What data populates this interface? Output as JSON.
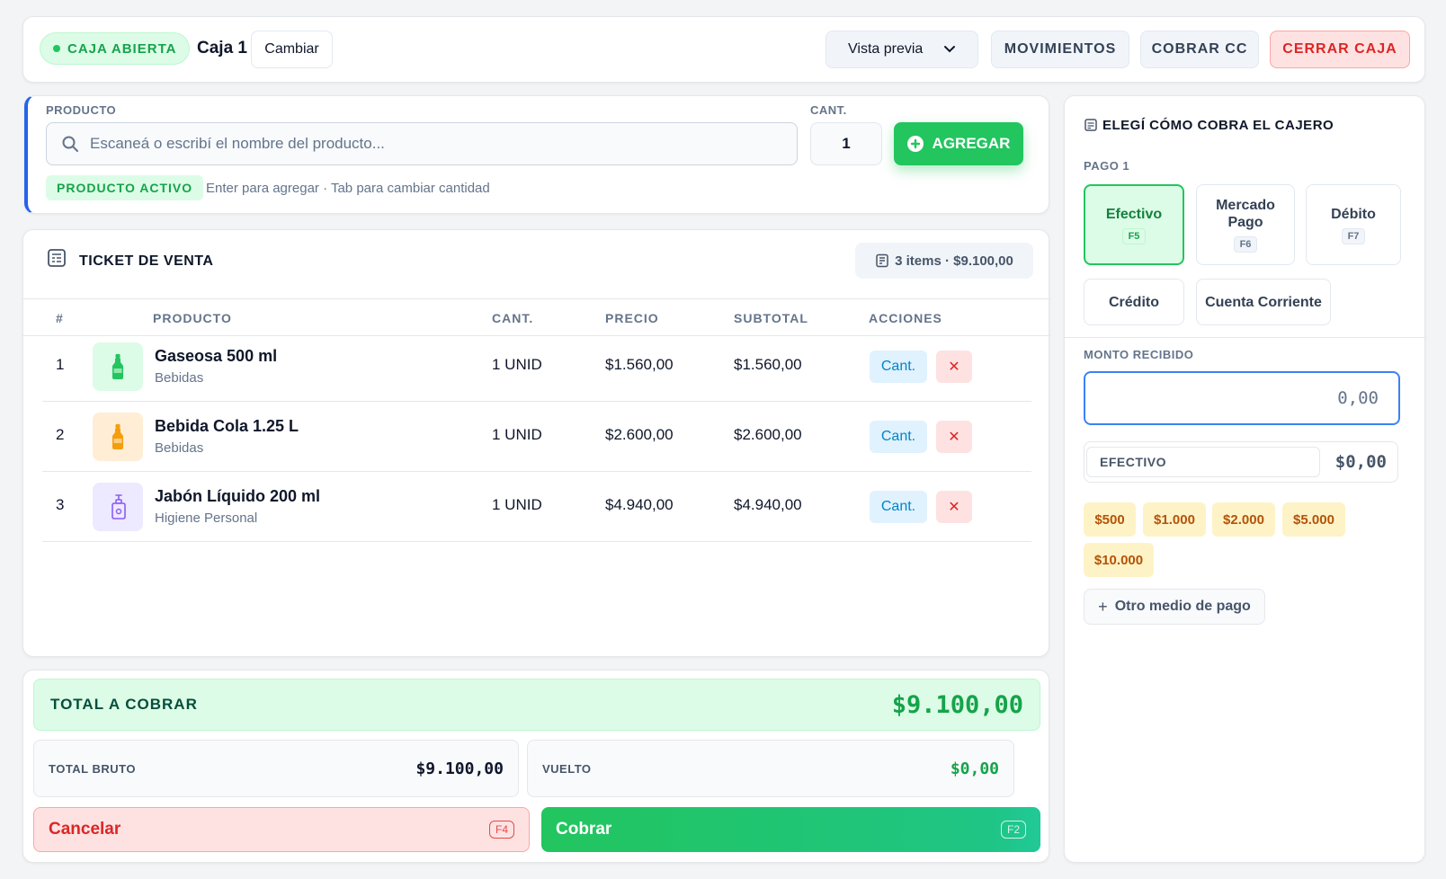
{
  "topbar": {
    "status": "CAJA ABIERTA",
    "register": "Caja 1",
    "change": "Cambiar",
    "preview": "Vista previa",
    "movements": "MOVIMIENTOS",
    "collect_cc": "COBRAR CC",
    "close_register": "CERRAR CAJA"
  },
  "entry": {
    "product_label": "PRODUCTO",
    "qty_label": "CANT.",
    "search_placeholder": "Escaneá o escribí el nombre del producto...",
    "qty_value": "1",
    "add": "AGREGAR",
    "active_pill": "PRODUCTO ACTIVO",
    "hint": "Enter para agregar · Tab para cambiar cantidad"
  },
  "ticket": {
    "title": "TICKET DE VENTA",
    "summary": "3 items · $9.100,00",
    "columns": [
      "#",
      "PRODUCTO",
      "CANT.",
      "PRECIO",
      "SUBTOTAL",
      "ACCIONES"
    ],
    "rows": [
      {
        "num": "1",
        "name": "Gaseosa 500 ml",
        "category": "Bebidas",
        "qty": "1 UNID",
        "price": "$1.560,00",
        "subtotal": "$1.560,00",
        "icon": "bottle-icon",
        "icon_color": "#22c55e",
        "thumb_bg": "#dcfce7"
      },
      {
        "num": "2",
        "name": "Bebida Cola 1.25 L",
        "category": "Bebidas",
        "qty": "1 UNID",
        "price": "$2.600,00",
        "subtotal": "$2.600,00",
        "icon": "bottle-icon",
        "icon_color": "#f59e0b",
        "thumb_bg": "#ffedd5"
      },
      {
        "num": "3",
        "name": "Jabón Líquido 200 ml",
        "category": "Higiene Personal",
        "qty": "1 UNID",
        "price": "$4.940,00",
        "subtotal": "$4.940,00",
        "icon": "soap-pump-icon",
        "icon_color": "#8b5cf6",
        "thumb_bg": "#ede9fe"
      }
    ],
    "action_qty": "Cant.",
    "action_delete": "✕"
  },
  "totals": {
    "total_label": "TOTAL A COBRAR",
    "total_value": "$9.100,00",
    "gross_label": "TOTAL BRUTO",
    "gross_value": "$9.100,00",
    "change_label": "VUELTO",
    "change_value": "$0,00",
    "cancel": "Cancelar",
    "cancel_key": "F4",
    "collect": "Cobrar",
    "collect_key": "F2"
  },
  "payment": {
    "title": "ELEGÍ CÓMO COBRA EL CAJERO",
    "pago_label": "PAGO 1",
    "methods": [
      {
        "name": "Efectivo",
        "key": "F5"
      },
      {
        "name": "Mercado Pago",
        "key": "F6"
      },
      {
        "name": "Débito",
        "key": "F7"
      },
      {
        "name": "Crédito",
        "key": ""
      },
      {
        "name": "Cuenta Corriente",
        "key": ""
      }
    ],
    "amount_label": "MONTO RECIBIDO",
    "amount_placeholder": "0,00",
    "method_row_name": "EFECTIVO",
    "method_row_amount": "$0,00",
    "quick_amounts": [
      "$500",
      "$1.000",
      "$2.000",
      "$5.000",
      "$10.000"
    ],
    "other_method": "Otro medio de pago"
  },
  "colors": {
    "accent_green": "#22c55e",
    "danger_red": "#dc2626",
    "focus_blue": "#3b82f6"
  }
}
